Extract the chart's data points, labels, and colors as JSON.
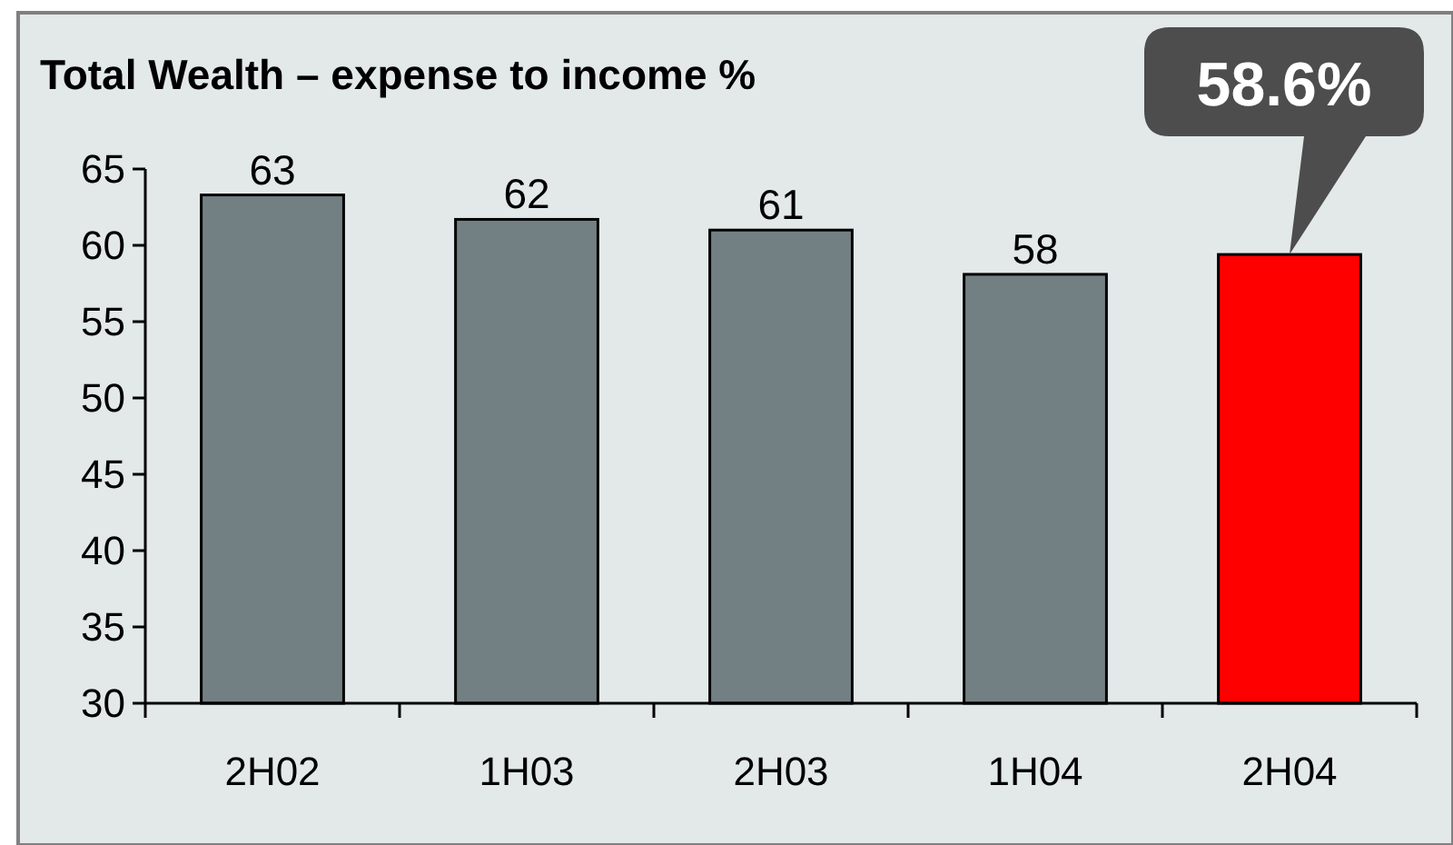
{
  "chart_data": {
    "type": "bar",
    "title": "Total Wealth – expense to income %",
    "categories": [
      "2H02",
      "1H03",
      "2H03",
      "1H04",
      "2H04"
    ],
    "values": [
      63.3,
      61.7,
      61.0,
      58.1,
      59.4
    ],
    "colors": [
      "#738083",
      "#738083",
      "#738083",
      "#738083",
      "#ff0000"
    ],
    "value_labels": [
      "63",
      "62",
      "61",
      "58",
      null
    ],
    "annotations": [
      {
        "text": "58.6%",
        "x": "2H04",
        "y": 59.4
      }
    ],
    "ylim": [
      30,
      65
    ],
    "yticks": [
      30,
      35,
      40,
      45,
      50,
      55,
      60,
      65
    ],
    "grid": false
  }
}
